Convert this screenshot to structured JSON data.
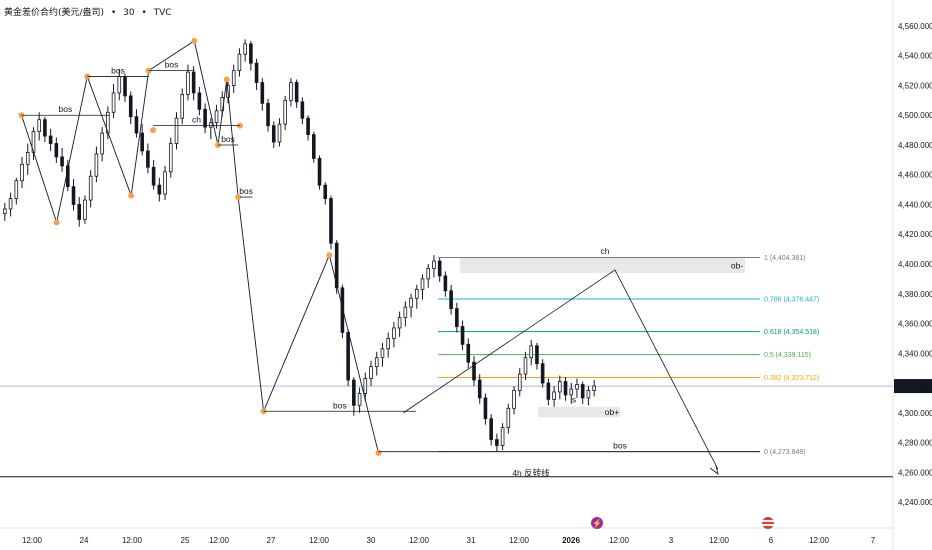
{
  "header": {
    "symbol_name": "黄金差价合约(美元/盎司)",
    "interval": "30",
    "source": "TVC",
    "separator": "•"
  },
  "colors": {
    "candle": "#131722",
    "pivot": "#f7a24b",
    "fib_1": "#787b86",
    "fib_786": "#22aed1",
    "fib_618": "#089981",
    "fib_5": "#4caf50",
    "fib_382": "#f7a21c",
    "fib_0": "#787b86",
    "price_line": "#b2b5e6",
    "ob_fill": "#e8e8e8"
  },
  "chart_data": {
    "type": "candlestick",
    "y_ticks": [
      "4,560.000",
      "4,540.000",
      "4,520.000",
      "4,500.000",
      "4,480.000",
      "4,460.000",
      "4,440.000",
      "4,420.000",
      "4,400.000",
      "4,380.000",
      "4,360.000",
      "4,340.000",
      "4,320.000",
      "4,300.000",
      "4,280.000",
      "4,260.000",
      "4,240.000"
    ],
    "ylim": [
      4240,
      4560
    ],
    "x_ticks": [
      "12:00",
      "24",
      "12:00",
      "25",
      "12:00",
      "27",
      "12:00",
      "30",
      "12:00",
      "31",
      "12:00",
      "2026",
      "12:00",
      "3",
      "12:00",
      "6",
      "12:00",
      "7"
    ],
    "current_price": "4,317.949",
    "current_price_value": 4317.949,
    "fib_levels": [
      {
        "label": "1 (4,404.381)",
        "value": 4404.381,
        "color_key": "fib_1"
      },
      {
        "label": "0.786 (4,376.447)",
        "value": 4376.447,
        "color_key": "fib_786"
      },
      {
        "label": "0.618 (4,354.518)",
        "value": 4354.518,
        "color_key": "fib_618"
      },
      {
        "label": "0.5 (4,339.115)",
        "value": 4339.115,
        "color_key": "fib_5"
      },
      {
        "label": "0.382 (4,323.712)",
        "value": 4323.712,
        "color_key": "fib_382"
      },
      {
        "label": "0 (4,273.849)",
        "value": 4273.849,
        "color_key": "fib_0"
      }
    ],
    "horizontal_line": 4257,
    "annotations": [
      "bos",
      "bos",
      "bos",
      "ch",
      "bos",
      "bos",
      "bos",
      "ch",
      "ob-",
      "ob+",
      "s",
      "bos",
      "4h 反转线"
    ],
    "pivots": [
      {
        "t": 2,
        "v": 4500
      },
      {
        "t": 6,
        "v": 4428
      },
      {
        "t": 9.5,
        "v": 4526
      },
      {
        "t": 14.5,
        "v": 4446
      },
      {
        "t": 16.5,
        "v": 4530
      },
      {
        "t": 17,
        "v": 4490
      },
      {
        "t": 21.7,
        "v": 4550
      },
      {
        "t": 24.4,
        "v": 4480
      },
      {
        "t": 25.4,
        "v": 4524
      },
      {
        "t": 26.9,
        "v": 4493
      },
      {
        "t": 26.7,
        "v": 4445
      },
      {
        "t": 29.6,
        "v": 4301
      },
      {
        "t": 37.1,
        "v": 4406
      },
      {
        "t": 42.7,
        "v": 4273
      }
    ],
    "candles": [
      [
        4434,
        4441,
        4429,
        4437
      ],
      [
        4437,
        4448,
        4432,
        4444
      ],
      [
        4444,
        4458,
        4440,
        4456
      ],
      [
        4456,
        4472,
        4451,
        4467
      ],
      [
        4467,
        4481,
        4460,
        4475
      ],
      [
        4475,
        4492,
        4470,
        4489
      ],
      [
        4489,
        4502,
        4483,
        4497
      ],
      [
        4497,
        4499,
        4482,
        4486
      ],
      [
        4486,
        4491,
        4476,
        4481
      ],
      [
        4481,
        4485,
        4468,
        4472
      ],
      [
        4472,
        4478,
        4462,
        4466
      ],
      [
        4466,
        4470,
        4449,
        4452
      ],
      [
        4452,
        4457,
        4436,
        4440
      ],
      [
        4440,
        4445,
        4425,
        4430
      ],
      [
        4430,
        4446,
        4427,
        4443
      ],
      [
        4443,
        4463,
        4438,
        4459
      ],
      [
        4459,
        4479,
        4455,
        4474
      ],
      [
        4474,
        4492,
        4469,
        4488
      ],
      [
        4488,
        4506,
        4484,
        4502
      ],
      [
        4502,
        4521,
        4498,
        4515
      ],
      [
        4515,
        4531,
        4510,
        4526
      ],
      [
        4526,
        4528,
        4509,
        4513
      ],
      [
        4513,
        4516,
        4494,
        4499
      ],
      [
        4499,
        4504,
        4485,
        4488
      ],
      [
        4488,
        4494,
        4473,
        4476
      ],
      [
        4476,
        4481,
        4461,
        4465
      ],
      [
        4465,
        4470,
        4450,
        4453
      ],
      [
        4453,
        4458,
        4442,
        4447
      ],
      [
        4447,
        4466,
        4443,
        4462
      ],
      [
        4462,
        4485,
        4458,
        4481
      ],
      [
        4481,
        4502,
        4477,
        4498
      ],
      [
        4498,
        4518,
        4494,
        4514
      ],
      [
        4514,
        4534,
        4510,
        4529
      ],
      [
        4529,
        4533,
        4510,
        4515
      ],
      [
        4515,
        4519,
        4500,
        4504
      ],
      [
        4504,
        4508,
        4488,
        4492
      ],
      [
        4492,
        4498,
        4484,
        4495
      ],
      [
        4495,
        4507,
        4491,
        4503
      ],
      [
        4503,
        4516,
        4499,
        4512
      ],
      [
        4512,
        4524,
        4508,
        4520
      ],
      [
        4520,
        4534,
        4515,
        4530
      ],
      [
        4530,
        4545,
        4526,
        4541
      ],
      [
        4541,
        4551,
        4536,
        4548
      ],
      [
        4548,
        4550,
        4530,
        4535
      ],
      [
        4535,
        4538,
        4517,
        4522
      ],
      [
        4522,
        4525,
        4503,
        4508
      ],
      [
        4508,
        4511,
        4489,
        4493
      ],
      [
        4493,
        4496,
        4478,
        4482
      ],
      [
        4482,
        4498,
        4479,
        4494
      ],
      [
        4494,
        4513,
        4490,
        4510
      ],
      [
        4510,
        4525,
        4506,
        4522
      ],
      [
        4522,
        4524,
        4505,
        4509
      ],
      [
        4509,
        4512,
        4494,
        4498
      ],
      [
        4498,
        4500,
        4483,
        4487
      ],
      [
        4487,
        4489,
        4468,
        4471
      ],
      [
        4471,
        4473,
        4450,
        4453
      ],
      [
        4453,
        4455,
        4440,
        4444
      ],
      [
        4444,
        4446,
        4410,
        4414
      ],
      [
        4414,
        4416,
        4380,
        4384
      ],
      [
        4384,
        4386,
        4350,
        4354
      ],
      [
        4354,
        4356,
        4318,
        4322
      ],
      [
        4322,
        4324,
        4298,
        4305
      ],
      [
        4305,
        4317,
        4300,
        4313
      ],
      [
        4313,
        4327,
        4308,
        4323
      ],
      [
        4323,
        4335,
        4318,
        4331
      ],
      [
        4331,
        4341,
        4325,
        4337
      ],
      [
        4337,
        4347,
        4331,
        4343
      ],
      [
        4343,
        4354,
        4337,
        4350
      ],
      [
        4350,
        4361,
        4344,
        4357
      ],
      [
        4357,
        4368,
        4351,
        4364
      ],
      [
        4364,
        4375,
        4358,
        4371
      ],
      [
        4371,
        4380,
        4364,
        4377
      ],
      [
        4377,
        4386,
        4370,
        4383
      ],
      [
        4383,
        4393,
        4376,
        4390
      ],
      [
        4390,
        4400,
        4384,
        4397
      ],
      [
        4397,
        4406,
        4391,
        4402
      ],
      [
        4402,
        4404,
        4388,
        4392
      ],
      [
        4392,
        4395,
        4378,
        4382
      ],
      [
        4382,
        4386,
        4366,
        4370
      ],
      [
        4370,
        4374,
        4354,
        4358
      ],
      [
        4358,
        4362,
        4342,
        4346
      ],
      [
        4346,
        4350,
        4330,
        4334
      ],
      [
        4334,
        4338,
        4318,
        4322
      ],
      [
        4322,
        4326,
        4306,
        4310
      ],
      [
        4310,
        4313,
        4292,
        4296
      ],
      [
        4296,
        4299,
        4278,
        4282
      ],
      [
        4282,
        4286,
        4274,
        4278
      ],
      [
        4278,
        4293,
        4275,
        4290
      ],
      [
        4290,
        4306,
        4286,
        4303
      ],
      [
        4303,
        4318,
        4299,
        4315
      ],
      [
        4315,
        4330,
        4311,
        4326
      ],
      [
        4326,
        4341,
        4322,
        4337
      ],
      [
        4337,
        4349,
        4332,
        4345
      ],
      [
        4345,
        4347,
        4329,
        4333
      ],
      [
        4333,
        4336,
        4317,
        4320
      ],
      [
        4320,
        4323,
        4305,
        4309
      ],
      [
        4309,
        4318,
        4304,
        4314
      ],
      [
        4314,
        4325,
        4309,
        4321
      ],
      [
        4321,
        4324,
        4308,
        4312
      ],
      [
        4312,
        4320,
        4306,
        4316
      ],
      [
        4316,
        4323,
        4310,
        4319
      ],
      [
        4319,
        4321,
        4306,
        4310
      ],
      [
        4310,
        4318,
        4305,
        4315
      ],
      [
        4315,
        4322,
        4311,
        4317.949
      ]
    ]
  }
}
